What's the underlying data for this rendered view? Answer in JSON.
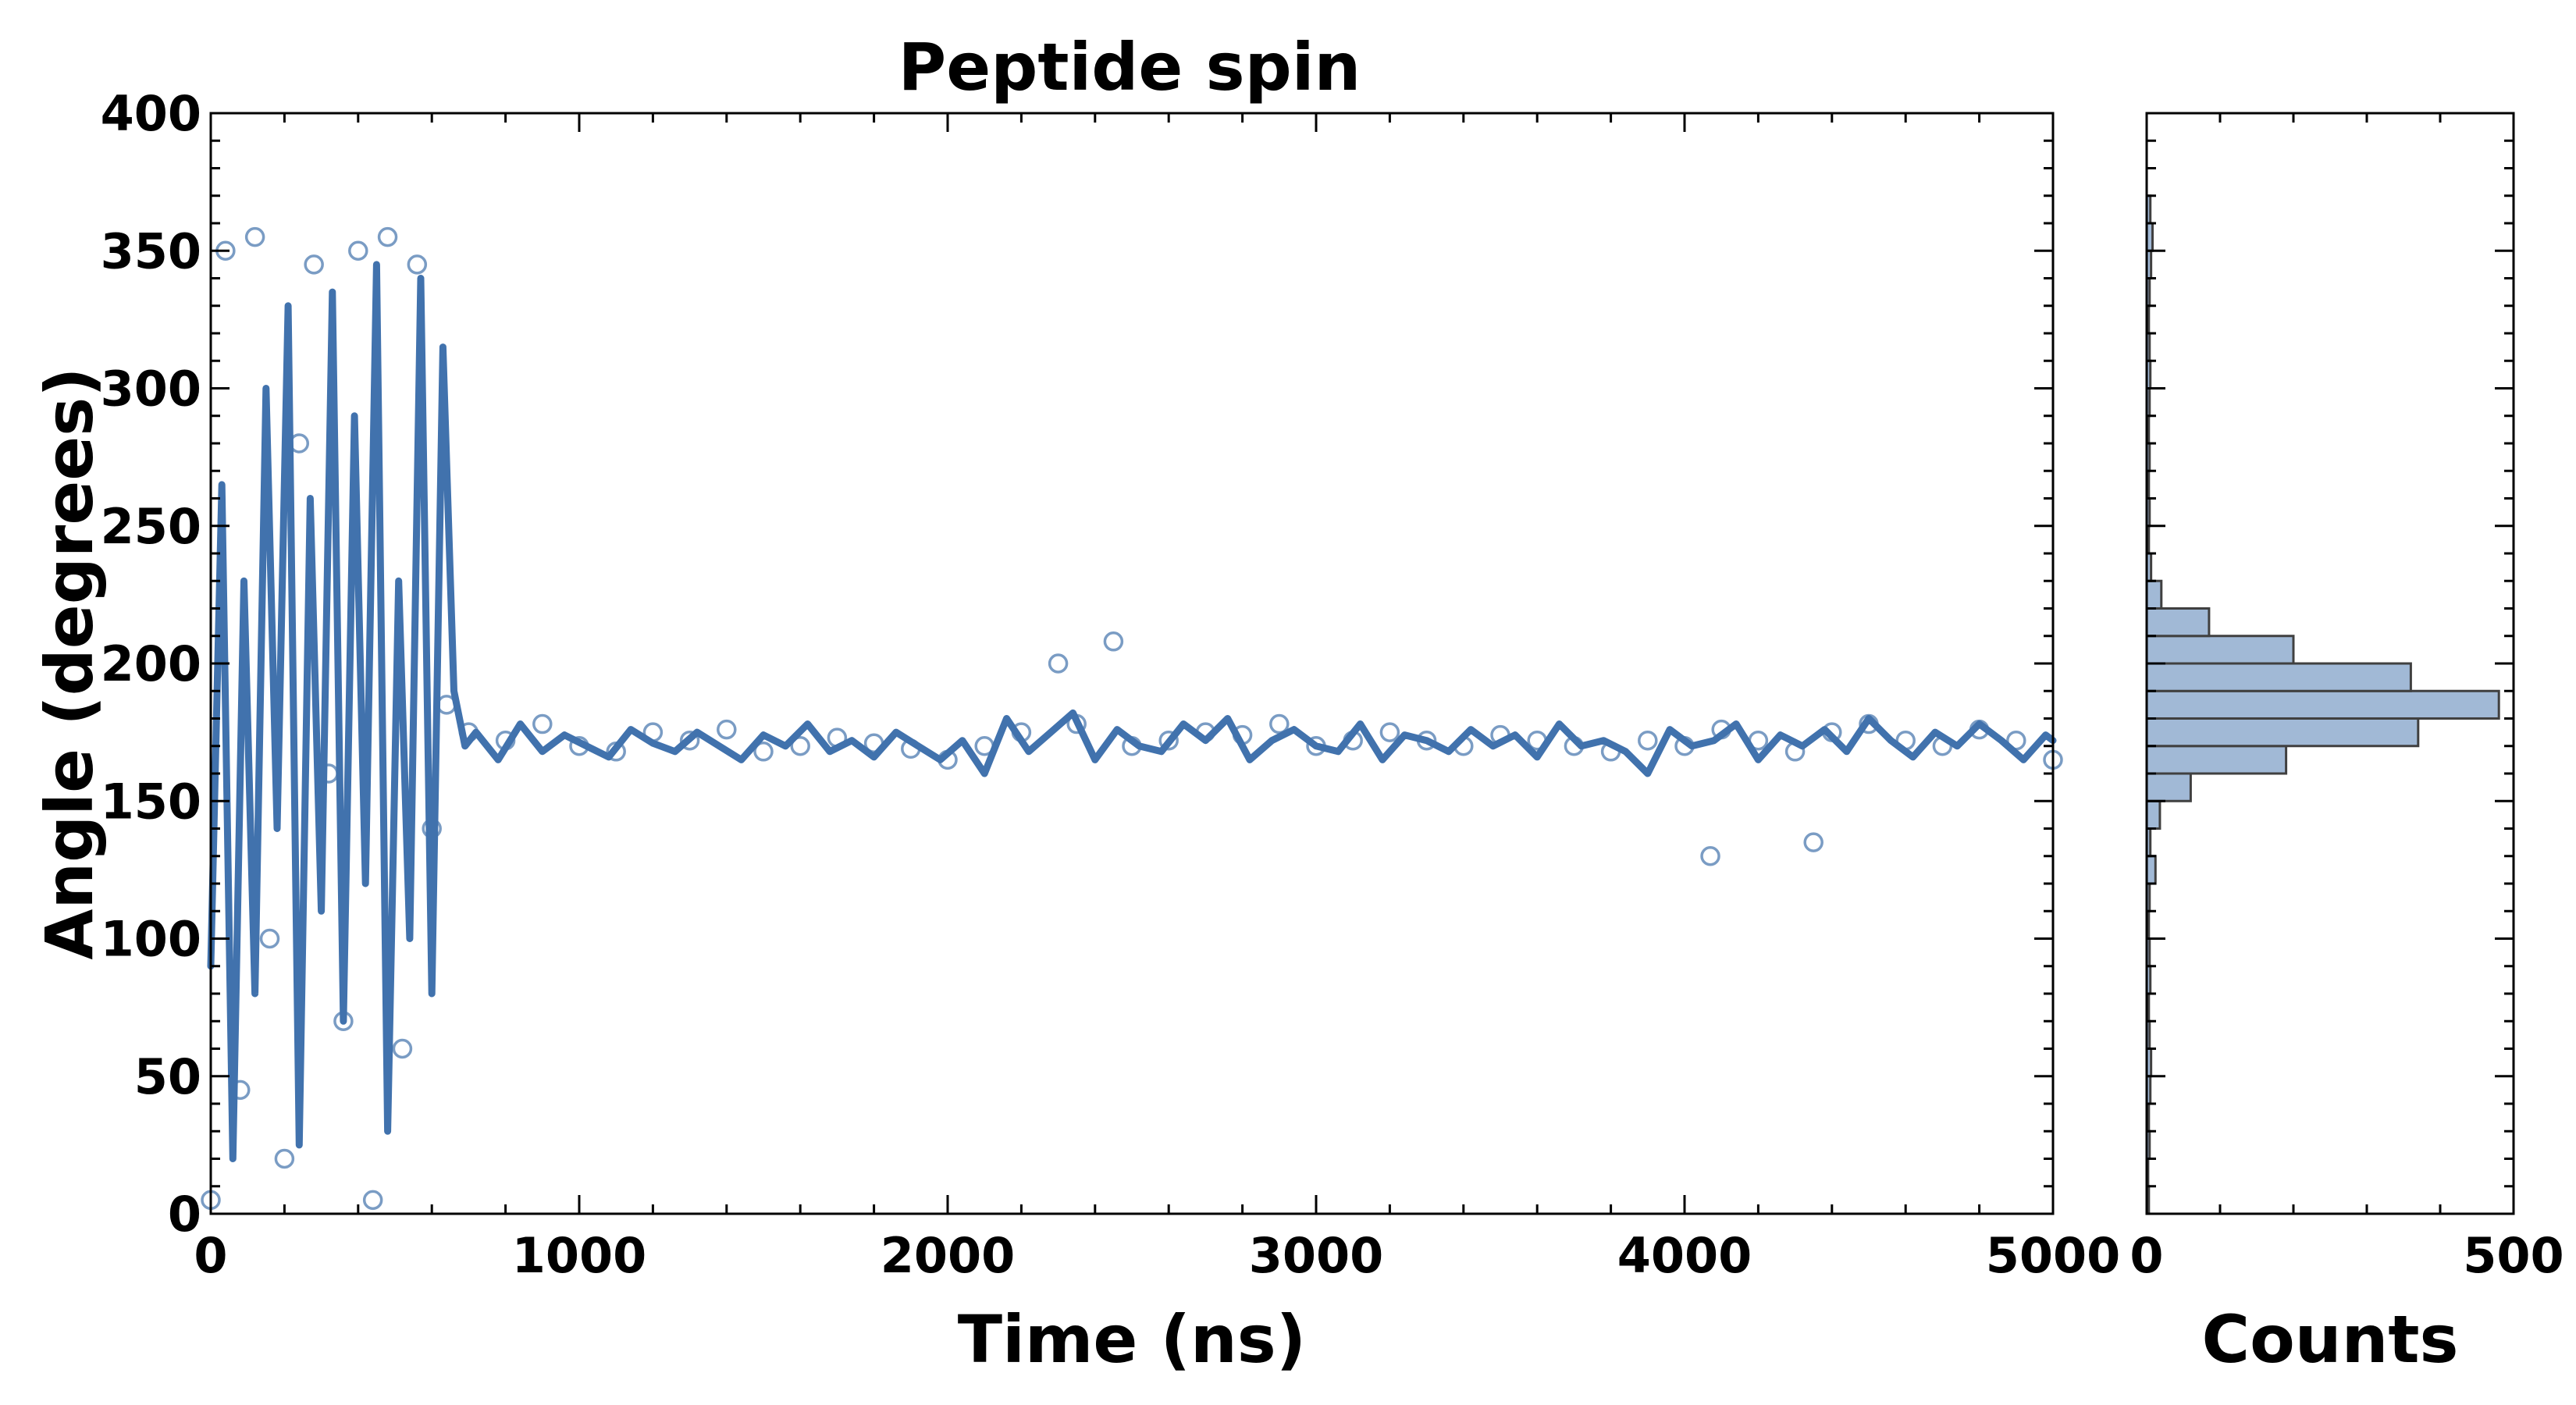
{
  "chart_data": [
    {
      "type": "scatter",
      "title": "Peptide spin",
      "xlabel": "Time (ns)",
      "ylabel": "Angle (degrees)",
      "xlim": [
        0,
        5000
      ],
      "ylim": [
        0,
        400
      ],
      "xticks": [
        0,
        1000,
        2000,
        3000,
        4000,
        5000
      ],
      "yticks": [
        0,
        50,
        100,
        150,
        200,
        250,
        300,
        350,
        400
      ],
      "xtick_labels": [
        "0",
        "1000",
        "2000",
        "3000",
        "4000",
        "5000"
      ],
      "ytick_labels": [
        "0",
        "50",
        "100",
        "150",
        "200",
        "250",
        "300",
        "350",
        "400"
      ],
      "grid": false,
      "colors": {
        "points": "#7a9cc4",
        "line": "#4172ad"
      },
      "series": [
        {
          "kind": "scatter",
          "marker": "open-circle",
          "x": [
            0,
            40,
            80,
            120,
            160,
            200,
            240,
            280,
            320,
            360,
            400,
            440,
            480,
            520,
            560,
            600,
            640,
            700,
            800,
            900,
            1000,
            1100,
            1200,
            1300,
            1400,
            1500,
            1600,
            1700,
            1800,
            1900,
            2000,
            2100,
            2200,
            2300,
            2350,
            2450,
            2500,
            2600,
            2700,
            2800,
            2900,
            3000,
            3100,
            3200,
            3300,
            3400,
            3500,
            3600,
            3700,
            3800,
            3900,
            4000,
            4070,
            4100,
            4200,
            4300,
            4350,
            4400,
            4500,
            4600,
            4700,
            4800,
            4900,
            5000
          ],
          "y": [
            5,
            350,
            45,
            355,
            100,
            20,
            280,
            345,
            160,
            70,
            350,
            5,
            355,
            60,
            345,
            140,
            185,
            175,
            172,
            178,
            170,
            168,
            175,
            172,
            176,
            168,
            170,
            173,
            171,
            169,
            165,
            170,
            175,
            200,
            178,
            208,
            170,
            172,
            175,
            174,
            178,
            170,
            172,
            175,
            172,
            170,
            174,
            172,
            170,
            168,
            172,
            170,
            130,
            176,
            172,
            168,
            135,
            175,
            178,
            172,
            170,
            176,
            172,
            165
          ]
        },
        {
          "kind": "line",
          "x": [
            0,
            30,
            60,
            90,
            120,
            150,
            180,
            210,
            240,
            270,
            300,
            330,
            360,
            390,
            420,
            450,
            480,
            510,
            540,
            570,
            600,
            630,
            660,
            690,
            720,
            780,
            840,
            900,
            960,
            1020,
            1080,
            1140,
            1200,
            1260,
            1320,
            1380,
            1440,
            1500,
            1560,
            1620,
            1680,
            1740,
            1800,
            1860,
            1920,
            1980,
            2040,
            2100,
            2160,
            2220,
            2280,
            2340,
            2400,
            2460,
            2520,
            2580,
            2640,
            2700,
            2760,
            2820,
            2880,
            2940,
            3000,
            3060,
            3120,
            3180,
            3240,
            3300,
            3360,
            3420,
            3480,
            3540,
            3600,
            3660,
            3720,
            3780,
            3840,
            3900,
            3960,
            4020,
            4080,
            4140,
            4200,
            4260,
            4320,
            4380,
            4440,
            4500,
            4560,
            4620,
            4680,
            4740,
            4800,
            4860,
            4920,
            4980,
            5000
          ],
          "y": [
            90,
            265,
            20,
            230,
            80,
            300,
            140,
            330,
            25,
            260,
            110,
            335,
            70,
            290,
            120,
            345,
            30,
            230,
            100,
            340,
            80,
            315,
            190,
            170,
            175,
            165,
            178,
            168,
            174,
            170,
            166,
            176,
            171,
            168,
            175,
            170,
            165,
            174,
            170,
            178,
            168,
            172,
            166,
            175,
            170,
            165,
            172,
            160,
            180,
            168,
            175,
            182,
            165,
            176,
            170,
            168,
            178,
            172,
            180,
            165,
            172,
            176,
            170,
            168,
            178,
            165,
            174,
            172,
            168,
            176,
            170,
            174,
            166,
            178,
            170,
            172,
            168,
            160,
            176,
            170,
            172,
            178,
            165,
            174,
            170,
            176,
            168,
            180,
            172,
            166,
            175,
            170,
            178,
            172,
            165,
            174,
            172
          ]
        }
      ]
    },
    {
      "type": "bar",
      "orientation": "horizontal",
      "xlabel": "Counts",
      "xlim": [
        0,
        500
      ],
      "ylim": [
        0,
        400
      ],
      "xticks": [
        0,
        500
      ],
      "xtick_labels": [
        "0",
        "500"
      ],
      "grid": false,
      "colors": {
        "fill": "#a1b9d6",
        "edge": "#404040"
      },
      "bin_width": 10,
      "bins_start": [
        0,
        10,
        20,
        30,
        40,
        50,
        60,
        70,
        80,
        90,
        100,
        110,
        120,
        130,
        140,
        150,
        160,
        170,
        180,
        190,
        200,
        210,
        220,
        230,
        240,
        250,
        260,
        270,
        280,
        290,
        300,
        310,
        320,
        330,
        340,
        350,
        360,
        370,
        380,
        390
      ],
      "counts": [
        3,
        2,
        4,
        3,
        5,
        6,
        4,
        3,
        5,
        4,
        3,
        4,
        12,
        5,
        18,
        60,
        190,
        370,
        480,
        360,
        200,
        85,
        20,
        6,
        3,
        4,
        3,
        4,
        3,
        4,
        5,
        4,
        3,
        4,
        6,
        8,
        5,
        0,
        0,
        0
      ]
    }
  ]
}
